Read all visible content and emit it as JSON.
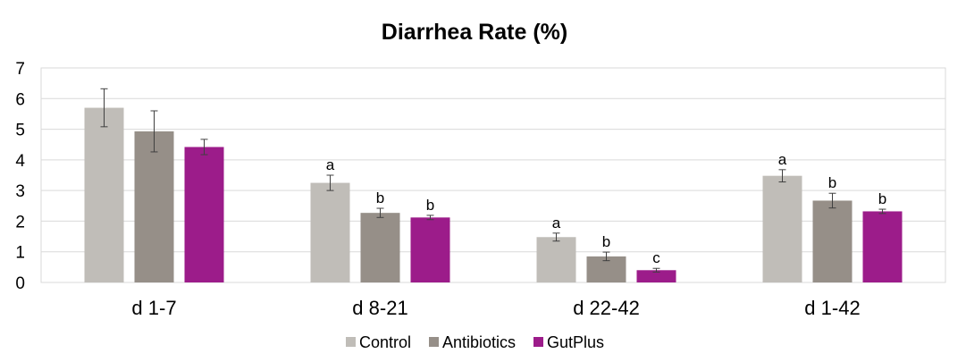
{
  "chart_data": {
    "type": "bar",
    "title": "Diarrhea Rate (%)",
    "xlabel": "",
    "ylabel": "",
    "ylim": [
      0,
      7
    ],
    "yticks": [
      "0",
      "1",
      "2",
      "3",
      "4",
      "5",
      "6",
      "7"
    ],
    "grid": true,
    "legend_position": "bottom",
    "categories": [
      "d 1-7",
      "d 8-21",
      "d 22-42",
      "d 1-42"
    ],
    "series": [
      {
        "name": "Control",
        "color": "#c0bdb8",
        "values": [
          5.7,
          3.25,
          1.48,
          3.48
        ],
        "errors": [
          0.62,
          0.25,
          0.13,
          0.2
        ],
        "labels": [
          "",
          "a",
          "a",
          "a"
        ]
      },
      {
        "name": "Antibiotics",
        "color": "#968f88",
        "values": [
          4.93,
          2.27,
          0.85,
          2.67
        ],
        "errors": [
          0.67,
          0.15,
          0.14,
          0.24
        ],
        "labels": [
          "",
          "b",
          "b",
          "b"
        ]
      },
      {
        "name": "GutPlus",
        "color": "#9c1c8a",
        "values": [
          4.42,
          2.12,
          0.4,
          2.32
        ],
        "errors": [
          0.25,
          0.07,
          0.06,
          0.07
        ],
        "labels": [
          "",
          "b",
          "c",
          "b"
        ]
      }
    ]
  }
}
